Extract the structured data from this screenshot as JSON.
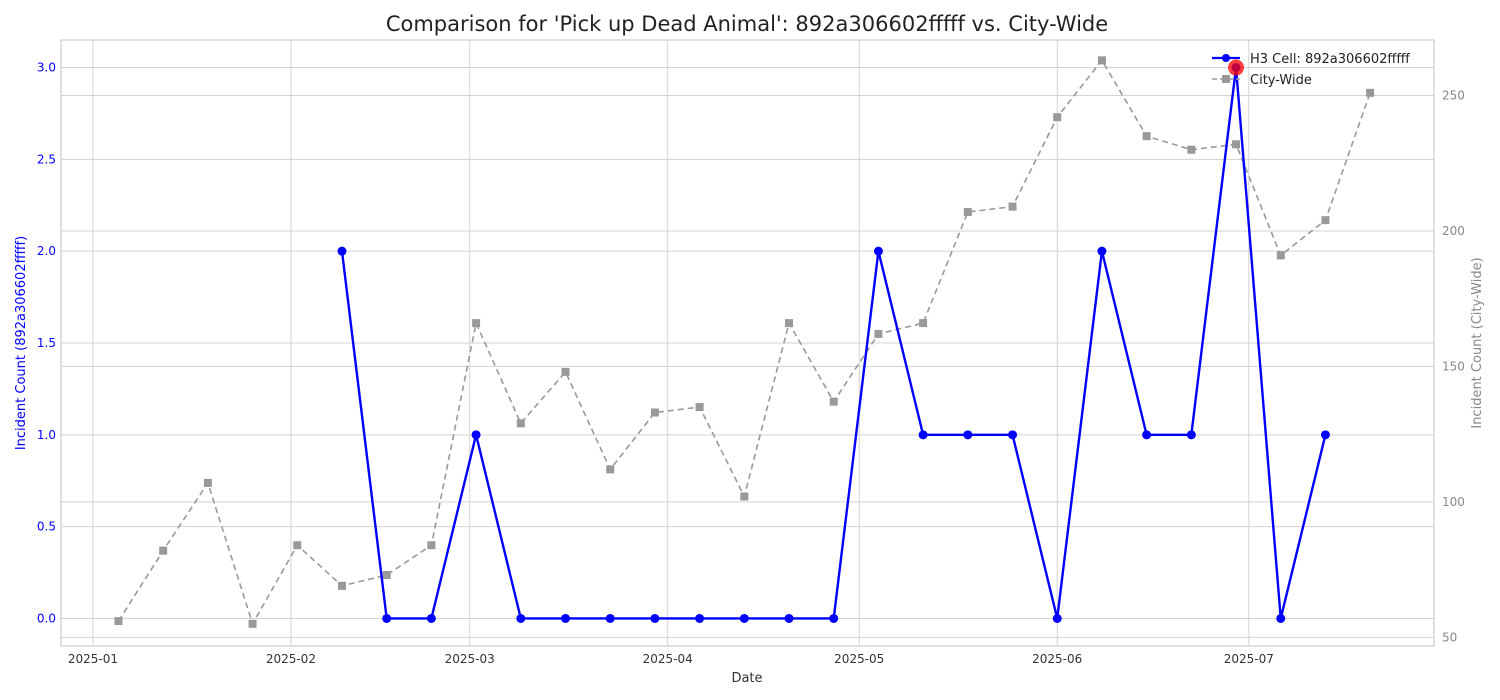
{
  "chart_data": {
    "type": "line",
    "title": "Comparison for 'Pick up Dead Animal': 892a306602fffff vs. City-Wide",
    "xlabel": "Date",
    "ylabel_left": "Incident Count (892a306602fffff)",
    "ylabel_right": "Incident Count (City-Wide)",
    "x_ticks": [
      "2025-01",
      "2025-02",
      "2025-03",
      "2025-04",
      "2025-05",
      "2025-06",
      "2025-07"
    ],
    "y_left_ticks": [
      "0.0",
      "0.5",
      "1.0",
      "1.5",
      "2.0",
      "2.5",
      "3.0"
    ],
    "y_right_ticks": [
      "50",
      "100",
      "150",
      "200",
      "250"
    ],
    "xlim": [
      "2024-12-27",
      "2025-07-30"
    ],
    "ylim_left": [
      -0.15,
      3.15
    ],
    "ylim_right": [
      46.8,
      270.5
    ],
    "grid": true,
    "legend_position": "top-right",
    "series": [
      {
        "name": "H3 Cell: 892a306602fffff",
        "axis": "left",
        "color": "#0000ff",
        "style": "solid",
        "marker": "circle",
        "points": [
          {
            "x": "2025-02-09",
            "y": 2
          },
          {
            "x": "2025-02-16",
            "y": 0
          },
          {
            "x": "2025-02-23",
            "y": 0
          },
          {
            "x": "2025-03-02",
            "y": 1
          },
          {
            "x": "2025-03-09",
            "y": 0
          },
          {
            "x": "2025-03-16",
            "y": 0
          },
          {
            "x": "2025-03-23",
            "y": 0
          },
          {
            "x": "2025-03-30",
            "y": 0
          },
          {
            "x": "2025-04-06",
            "y": 0
          },
          {
            "x": "2025-04-13",
            "y": 0
          },
          {
            "x": "2025-04-20",
            "y": 0
          },
          {
            "x": "2025-04-27",
            "y": 0
          },
          {
            "x": "2025-05-04",
            "y": 2
          },
          {
            "x": "2025-05-11",
            "y": 1
          },
          {
            "x": "2025-05-18",
            "y": 1
          },
          {
            "x": "2025-05-25",
            "y": 1
          },
          {
            "x": "2025-06-01",
            "y": 0
          },
          {
            "x": "2025-06-08",
            "y": 2
          },
          {
            "x": "2025-06-15",
            "y": 1
          },
          {
            "x": "2025-06-22",
            "y": 1
          },
          {
            "x": "2025-06-29",
            "y": 3
          },
          {
            "x": "2025-07-06",
            "y": 0
          },
          {
            "x": "2025-07-13",
            "y": 1
          }
        ]
      },
      {
        "name": "City-Wide",
        "axis": "right",
        "color": "#999999",
        "style": "dashed",
        "marker": "square",
        "points": [
          {
            "x": "2025-01-05",
            "y": 56
          },
          {
            "x": "2025-01-12",
            "y": 82
          },
          {
            "x": "2025-01-19",
            "y": 107
          },
          {
            "x": "2025-01-26",
            "y": 55
          },
          {
            "x": "2025-02-02",
            "y": 84
          },
          {
            "x": "2025-02-09",
            "y": 69
          },
          {
            "x": "2025-02-16",
            "y": 73
          },
          {
            "x": "2025-02-23",
            "y": 84
          },
          {
            "x": "2025-03-02",
            "y": 166
          },
          {
            "x": "2025-03-09",
            "y": 129
          },
          {
            "x": "2025-03-16",
            "y": 148
          },
          {
            "x": "2025-03-23",
            "y": 112
          },
          {
            "x": "2025-03-30",
            "y": 133
          },
          {
            "x": "2025-04-06",
            "y": 135
          },
          {
            "x": "2025-04-13",
            "y": 102
          },
          {
            "x": "2025-04-20",
            "y": 166
          },
          {
            "x": "2025-04-27",
            "y": 137
          },
          {
            "x": "2025-05-04",
            "y": 162
          },
          {
            "x": "2025-05-11",
            "y": 166
          },
          {
            "x": "2025-05-18",
            "y": 207
          },
          {
            "x": "2025-05-25",
            "y": 209
          },
          {
            "x": "2025-06-01",
            "y": 242
          },
          {
            "x": "2025-06-08",
            "y": 263
          },
          {
            "x": "2025-06-15",
            "y": 235
          },
          {
            "x": "2025-06-22",
            "y": 230
          },
          {
            "x": "2025-06-29",
            "y": 232
          },
          {
            "x": "2025-07-06",
            "y": 191
          },
          {
            "x": "2025-07-13",
            "y": 204
          },
          {
            "x": "2025-07-20",
            "y": 251
          }
        ]
      }
    ],
    "highlight_point": {
      "x": "2025-06-29",
      "y": 3,
      "axis": "left",
      "color": "#ff0000"
    }
  }
}
